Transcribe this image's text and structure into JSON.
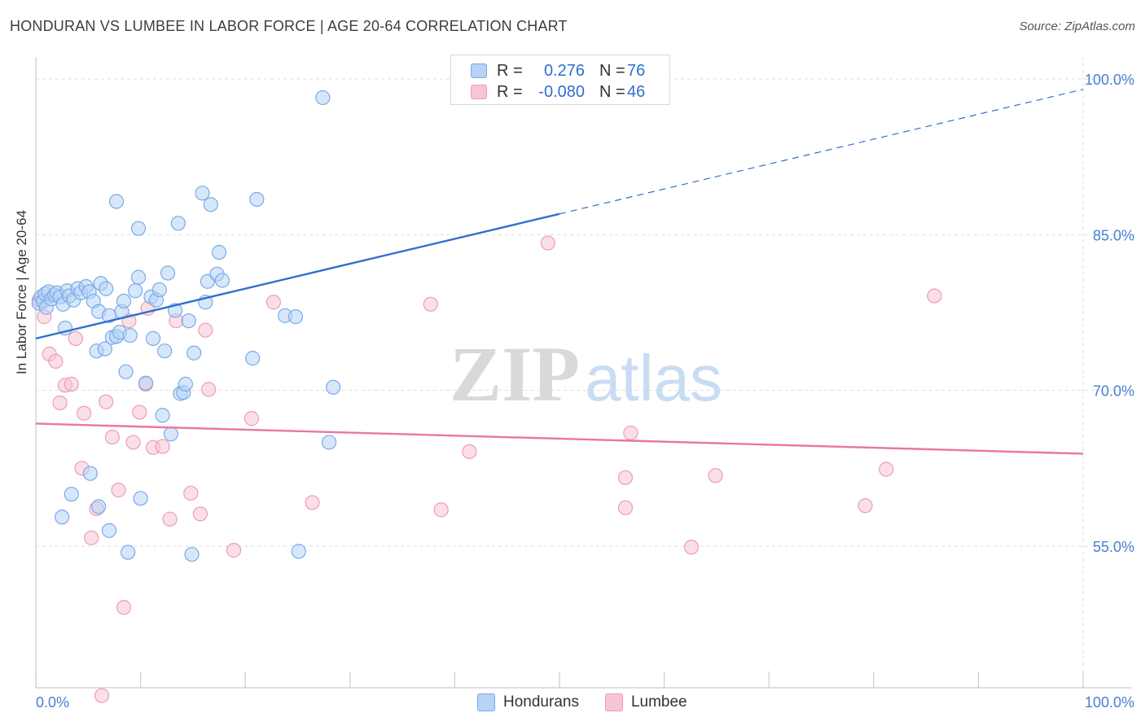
{
  "header": {
    "title": "HONDURAN VS LUMBEE IN LABOR FORCE | AGE 20-64 CORRELATION CHART",
    "source": "Source: ZipAtlas.com"
  },
  "legend": {
    "rows": [
      {
        "r_label": "R =",
        "r_value": "0.276",
        "n_label": "N =",
        "n_value": "76"
      },
      {
        "r_label": "R =",
        "r_value": "-0.080",
        "n_label": "N =",
        "n_value": "46"
      }
    ],
    "bottom": [
      "Hondurans",
      "Lumbee"
    ]
  },
  "watermark": {
    "zip": "ZIP",
    "atlas": "atlas"
  },
  "colors": {
    "blue_fill": "#b7d3f5",
    "blue_stroke": "#7aaae6",
    "blue_line": "#2f6fcf",
    "pink_fill": "#f8c5d4",
    "pink_stroke": "#ee9bb6",
    "pink_line": "#e8779f",
    "axis_label": "#4a7fd0"
  },
  "chart_data": {
    "type": "scatter",
    "title": "HONDURAN VS LUMBEE IN LABOR FORCE | AGE 20-64 CORRELATION CHART",
    "xlabel": "",
    "ylabel": "In Labor Force | Age 20-64",
    "xlim": [
      0,
      100
    ],
    "ylim": [
      40,
      100.5
    ],
    "x_tick_labels": [
      "0.0%",
      "100.0%"
    ],
    "y_ticks": [
      55,
      70,
      85,
      100
    ],
    "y_tick_labels": [
      "55.0%",
      "70.0%",
      "85.0%",
      "100.0%"
    ],
    "grid": true,
    "legend_position": "top-center",
    "series": [
      {
        "name": "Hondurans",
        "color": "#b7d3f5",
        "trend": {
          "x": [
            0,
            50
          ],
          "y": [
            75.0,
            87.0
          ],
          "dashed_to": [
            100,
            99.0
          ]
        },
        "points": [
          [
            0.3,
            78.4
          ],
          [
            0.5,
            79.0
          ],
          [
            0.7,
            78.6
          ],
          [
            0.9,
            79.3
          ],
          [
            1.0,
            78.0
          ],
          [
            1.2,
            79.5
          ],
          [
            1.5,
            78.8
          ],
          [
            1.8,
            79.2
          ],
          [
            2.0,
            79.4
          ],
          [
            2.3,
            79.0
          ],
          [
            2.6,
            78.3
          ],
          [
            3.0,
            79.6
          ],
          [
            3.2,
            79.1
          ],
          [
            3.6,
            78.7
          ],
          [
            4.0,
            79.8
          ],
          [
            4.3,
            79.4
          ],
          [
            4.8,
            80.0
          ],
          [
            5.1,
            79.5
          ],
          [
            5.5,
            78.6
          ],
          [
            6.0,
            77.6
          ],
          [
            6.2,
            80.3
          ],
          [
            6.7,
            79.8
          ],
          [
            2.8,
            76.0
          ],
          [
            5.8,
            73.8
          ],
          [
            6.6,
            74.0
          ],
          [
            7.0,
            77.2
          ],
          [
            7.3,
            75.1
          ],
          [
            7.7,
            75.2
          ],
          [
            8.0,
            75.6
          ],
          [
            8.2,
            77.6
          ],
          [
            8.4,
            78.6
          ],
          [
            8.6,
            71.8
          ],
          [
            9.0,
            75.3
          ],
          [
            9.5,
            79.6
          ],
          [
            9.8,
            80.9
          ],
          [
            10.5,
            70.7
          ],
          [
            11.0,
            79.0
          ],
          [
            11.2,
            75.0
          ],
          [
            11.5,
            78.7
          ],
          [
            11.8,
            79.7
          ],
          [
            12.1,
            67.6
          ],
          [
            12.3,
            73.8
          ],
          [
            12.6,
            81.3
          ],
          [
            12.9,
            65.8
          ],
          [
            13.3,
            77.7
          ],
          [
            13.6,
            86.1
          ],
          [
            13.8,
            69.7
          ],
          [
            14.1,
            69.8
          ],
          [
            14.3,
            70.6
          ],
          [
            14.6,
            76.7
          ],
          [
            15.1,
            73.6
          ],
          [
            15.9,
            89.0
          ],
          [
            16.2,
            78.5
          ],
          [
            16.4,
            80.5
          ],
          [
            16.7,
            87.9
          ],
          [
            17.3,
            81.2
          ],
          [
            17.5,
            83.3
          ],
          [
            17.8,
            80.6
          ],
          [
            20.7,
            73.1
          ],
          [
            21.1,
            88.4
          ],
          [
            23.8,
            77.2
          ],
          [
            24.8,
            77.1
          ],
          [
            27.4,
            98.2
          ],
          [
            28.4,
            70.3
          ],
          [
            28.0,
            65.0
          ],
          [
            7.7,
            88.2
          ],
          [
            9.8,
            85.6
          ],
          [
            10.0,
            59.6
          ],
          [
            8.8,
            54.4
          ],
          [
            14.9,
            54.2
          ],
          [
            25.1,
            54.5
          ],
          [
            2.5,
            57.8
          ],
          [
            3.4,
            60.0
          ],
          [
            5.2,
            62.0
          ],
          [
            6.0,
            58.8
          ],
          [
            7.0,
            56.5
          ]
        ]
      },
      {
        "name": "Lumbee",
        "color": "#f8c5d4",
        "trend": {
          "x": [
            0,
            100
          ],
          "y": [
            66.8,
            63.9
          ]
        },
        "points": [
          [
            0.3,
            78.7
          ],
          [
            0.8,
            77.1
          ],
          [
            1.3,
            73.5
          ],
          [
            1.9,
            72.8
          ],
          [
            2.3,
            68.8
          ],
          [
            2.8,
            70.5
          ],
          [
            3.4,
            70.6
          ],
          [
            3.8,
            75.0
          ],
          [
            4.4,
            62.5
          ],
          [
            4.6,
            67.8
          ],
          [
            5.3,
            55.8
          ],
          [
            5.8,
            58.6
          ],
          [
            6.7,
            68.9
          ],
          [
            7.3,
            65.5
          ],
          [
            7.9,
            60.4
          ],
          [
            8.4,
            49.1
          ],
          [
            8.9,
            76.7
          ],
          [
            9.3,
            65.0
          ],
          [
            9.9,
            67.9
          ],
          [
            10.5,
            70.6
          ],
          [
            10.7,
            77.9
          ],
          [
            11.2,
            64.5
          ],
          [
            12.1,
            64.6
          ],
          [
            12.8,
            57.6
          ],
          [
            13.4,
            76.7
          ],
          [
            14.8,
            60.1
          ],
          [
            15.7,
            58.1
          ],
          [
            16.2,
            75.8
          ],
          [
            16.5,
            70.1
          ],
          [
            18.9,
            54.6
          ],
          [
            20.6,
            67.3
          ],
          [
            22.7,
            78.5
          ],
          [
            26.4,
            59.2
          ],
          [
            37.7,
            78.3
          ],
          [
            38.7,
            58.5
          ],
          [
            41.4,
            64.1
          ],
          [
            48.9,
            84.2
          ],
          [
            56.3,
            61.6
          ],
          [
            56.3,
            58.7
          ],
          [
            56.8,
            65.9
          ],
          [
            62.6,
            54.9
          ],
          [
            64.9,
            61.8
          ],
          [
            79.2,
            58.9
          ],
          [
            81.2,
            62.4
          ],
          [
            85.8,
            79.1
          ],
          [
            6.3,
            40.6
          ]
        ]
      }
    ]
  }
}
